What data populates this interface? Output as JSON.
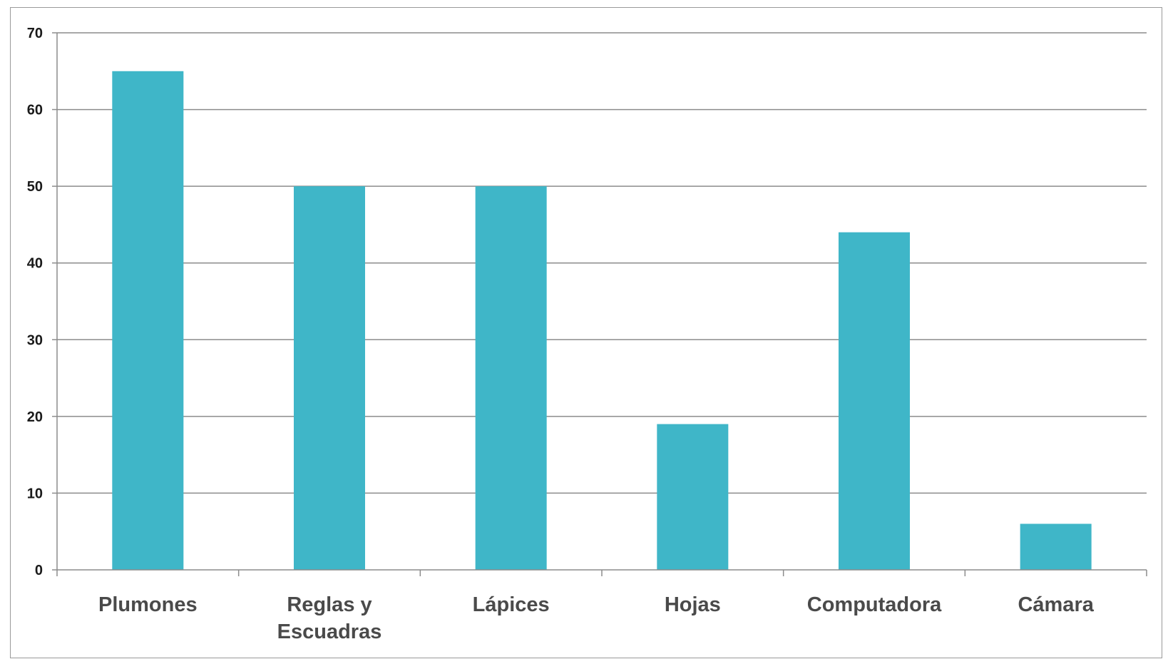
{
  "chart_data": {
    "type": "bar",
    "title": "",
    "xlabel": "",
    "ylabel": "",
    "categories": [
      [
        "Plumones"
      ],
      [
        "Reglas y",
        "Escuadras"
      ],
      [
        "Lápices"
      ],
      [
        "Hojas"
      ],
      [
        "Computadora"
      ],
      [
        "Cámara"
      ]
    ],
    "values": [
      65,
      50,
      50,
      19,
      44,
      6
    ],
    "ylim": [
      0,
      70
    ],
    "yticks": [
      0,
      10,
      20,
      30,
      40,
      50,
      60,
      70
    ],
    "grid": true,
    "legend": "none",
    "colors": {
      "bar": "#3fb6c8",
      "grid": "#8c8c8c",
      "axis": "#8c8c8c"
    }
  }
}
